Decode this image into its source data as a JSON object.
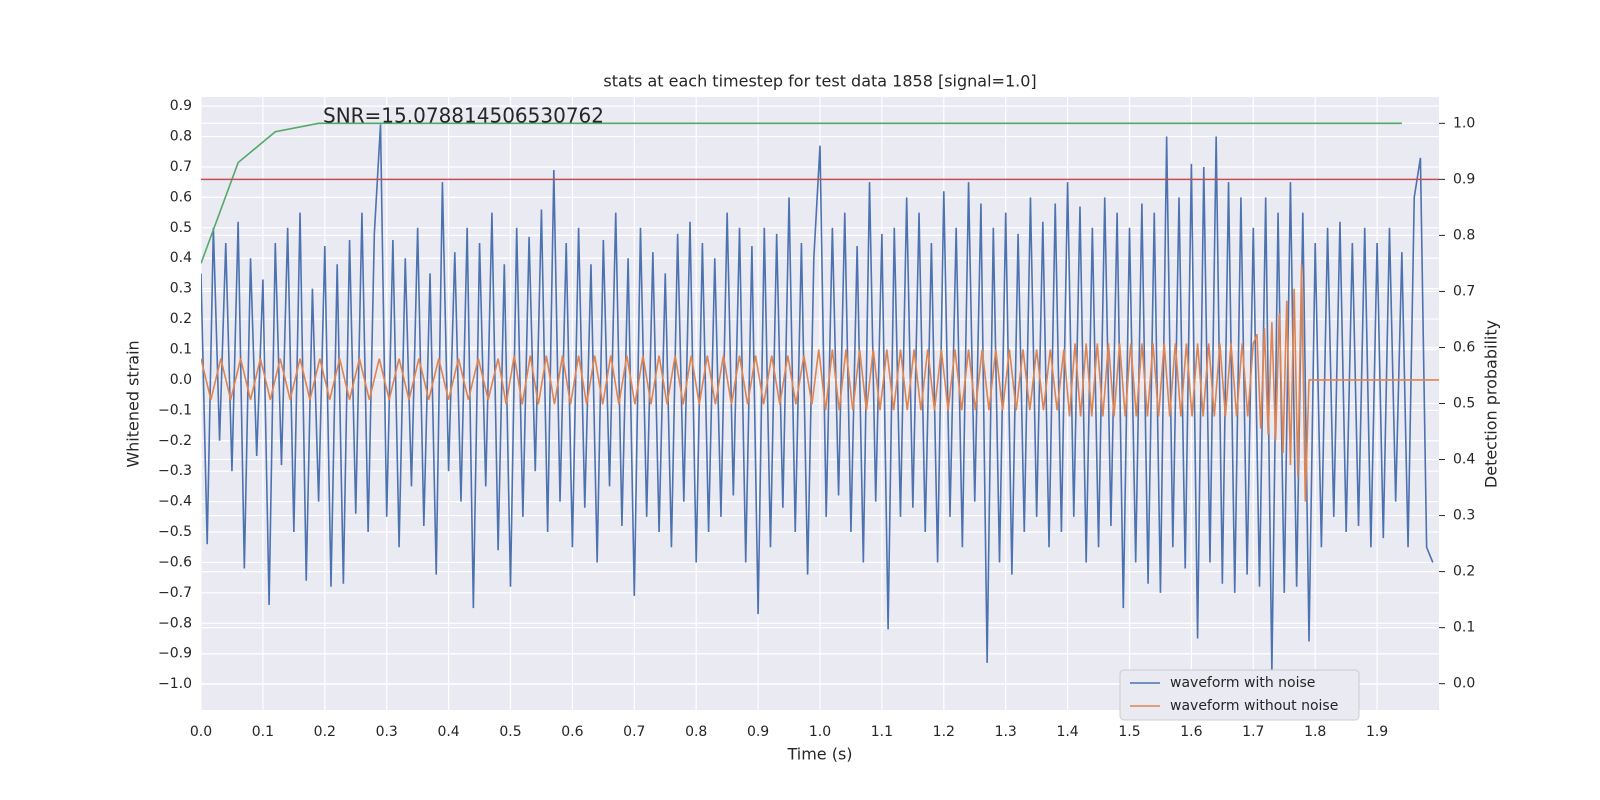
{
  "chart_data": {
    "type": "line",
    "title": "stats at each timestep for test data 1858 [signal=1.0]",
    "annotation": "SNR=15.078814506530762",
    "x_label": "Time (s)",
    "y_label": "Whitened strain",
    "y2_label": "Detection probability",
    "xlim": [
      0,
      2.0
    ],
    "ylim": [
      -1.085,
      0.93
    ],
    "y2lim": [
      -0.047,
      1.047
    ],
    "grid": true,
    "legend": "lower right",
    "xticks": [
      {
        "value": 0,
        "label": "0.0"
      },
      0.1,
      0.2,
      0.3,
      0.4,
      0.5,
      0.6,
      0.7,
      0.8,
      0.9,
      {
        "value": 1,
        "label": "1.0"
      },
      1.1,
      1.2,
      1.3,
      1.4,
      1.5,
      1.6,
      1.7,
      1.8,
      1.9
    ],
    "yticks": [
      {
        "value": -1,
        "label": "−1.0"
      },
      {
        "value": -0.9,
        "label": "−0.9"
      },
      {
        "value": -0.8,
        "label": "−0.8"
      },
      {
        "value": -0.7,
        "label": "−0.7"
      },
      {
        "value": -0.6,
        "label": "−0.6"
      },
      {
        "value": -0.5,
        "label": "−0.5"
      },
      {
        "value": -0.4,
        "label": "−0.4"
      },
      {
        "value": -0.3,
        "label": "−0.3"
      },
      {
        "value": -0.2,
        "label": "−0.2"
      },
      {
        "value": -0.1,
        "label": "−0.1"
      },
      {
        "value": 0,
        "label": "0.0"
      },
      0.1,
      0.2,
      0.3,
      0.4,
      0.5,
      0.6,
      0.7,
      0.8,
      0.9
    ],
    "y2ticks": [
      {
        "value": 0,
        "label": "0.0"
      },
      0.1,
      0.2,
      0.3,
      0.4,
      0.5,
      0.6,
      0.7,
      0.8,
      0.9,
      {
        "value": 1,
        "label": "1.0"
      }
    ],
    "series": [
      {
        "name": "waveform with noise",
        "color": "#4c72b0",
        "x": [
          0,
          0.01,
          0.02,
          0.03,
          0.04,
          0.05,
          0.06,
          0.07,
          0.08,
          0.09,
          0.1,
          0.11,
          0.12,
          0.13,
          0.14,
          0.15,
          0.16,
          0.17,
          0.18,
          0.19,
          0.2,
          0.21,
          0.22,
          0.23,
          0.24,
          0.25,
          0.26,
          0.27,
          0.28,
          0.29,
          0.3,
          0.31,
          0.32,
          0.33,
          0.34,
          0.35,
          0.36,
          0.37,
          0.38,
          0.39,
          0.4,
          0.41,
          0.42,
          0.43,
          0.44,
          0.45,
          0.46,
          0.47,
          0.48,
          0.49,
          0.5,
          0.51,
          0.52,
          0.53,
          0.54,
          0.55,
          0.56,
          0.57,
          0.58,
          0.59,
          0.6,
          0.61,
          0.62,
          0.63,
          0.64,
          0.65,
          0.66,
          0.67,
          0.68,
          0.69,
          0.7,
          0.71,
          0.72,
          0.73,
          0.74,
          0.75,
          0.76,
          0.77,
          0.78,
          0.79,
          0.8,
          0.81,
          0.82,
          0.83,
          0.84,
          0.85,
          0.86,
          0.87,
          0.88,
          0.89,
          0.9,
          0.91,
          0.92,
          0.93,
          0.94,
          0.95,
          0.96,
          0.97,
          0.98,
          0.99,
          1,
          1.01,
          1.02,
          1.03,
          1.04,
          1.05,
          1.06,
          1.07,
          1.08,
          1.09,
          1.1,
          1.11,
          1.12,
          1.13,
          1.14,
          1.15,
          1.16,
          1.17,
          1.18,
          1.19,
          1.2,
          1.21,
          1.22,
          1.23,
          1.24,
          1.25,
          1.26,
          1.27,
          1.28,
          1.29,
          1.3,
          1.31,
          1.32,
          1.33,
          1.34,
          1.35,
          1.36,
          1.37,
          1.38,
          1.39,
          1.4,
          1.41,
          1.42,
          1.43,
          1.44,
          1.45,
          1.46,
          1.47,
          1.48,
          1.49,
          1.5,
          1.51,
          1.52,
          1.53,
          1.54,
          1.55,
          1.56,
          1.57,
          1.58,
          1.59,
          1.6,
          1.61,
          1.62,
          1.63,
          1.64,
          1.65,
          1.66,
          1.67,
          1.68,
          1.69,
          1.7,
          1.71,
          1.72,
          1.73,
          1.74,
          1.75,
          1.76,
          1.77,
          1.78,
          1.79,
          1.8,
          1.81,
          1.82,
          1.83,
          1.84,
          1.85,
          1.86,
          1.87,
          1.88,
          1.89,
          1.9,
          1.91,
          1.92,
          1.93,
          1.94,
          1.95,
          1.96,
          1.97,
          1.98,
          1.99
        ],
        "values": [
          0.35,
          -0.54,
          0.5,
          -0.2,
          0.45,
          -0.3,
          0.52,
          -0.62,
          0.4,
          -0.25,
          0.33,
          -0.74,
          0.45,
          -0.28,
          0.5,
          -0.5,
          0.55,
          -0.66,
          0.3,
          -0.4,
          0.44,
          -0.68,
          0.38,
          -0.67,
          0.46,
          -0.44,
          0.55,
          -0.5,
          0.48,
          0.84,
          -0.45,
          0.46,
          -0.55,
          0.4,
          -0.35,
          0.5,
          -0.48,
          0.35,
          -0.64,
          0.65,
          -0.3,
          0.42,
          -0.4,
          0.5,
          -0.75,
          0.45,
          -0.35,
          0.55,
          -0.56,
          0.38,
          -0.68,
          0.5,
          -0.45,
          0.47,
          -0.3,
          0.56,
          -0.5,
          0.69,
          -0.4,
          0.45,
          -0.55,
          0.5,
          -0.42,
          0.38,
          -0.6,
          0.46,
          -0.35,
          0.55,
          -0.48,
          0.4,
          -0.71,
          0.5,
          -0.45,
          0.42,
          -0.5,
          0.35,
          -0.55,
          0.48,
          -0.4,
          0.52,
          -0.6,
          0.45,
          -0.5,
          0.4,
          -0.45,
          0.55,
          -0.38,
          0.5,
          -0.6,
          0.44,
          -0.77,
          0.5,
          -0.55,
          0.48,
          -0.42,
          0.6,
          -0.5,
          0.45,
          -0.64,
          0.4,
          0.77,
          -0.45,
          0.5,
          -0.38,
          0.55,
          -0.5,
          0.44,
          -0.6,
          0.65,
          -0.4,
          0.48,
          -0.82,
          0.5,
          -0.45,
          0.6,
          -0.42,
          0.55,
          -0.5,
          0.45,
          -0.6,
          0.62,
          -0.45,
          0.5,
          -0.55,
          0.65,
          -0.4,
          0.58,
          -0.93,
          0.5,
          -0.6,
          0.55,
          -0.64,
          0.48,
          -0.5,
          0.6,
          -0.45,
          0.52,
          -0.55,
          0.58,
          -0.5,
          0.65,
          -0.45,
          0.57,
          -0.6,
          0.5,
          -0.55,
          0.6,
          -0.48,
          0.55,
          -0.75,
          0.5,
          -0.6,
          0.58,
          -0.67,
          0.55,
          -0.7,
          0.8,
          -0.55,
          0.6,
          -0.62,
          0.71,
          -0.85,
          0.7,
          -0.6,
          0.8,
          -0.67,
          0.65,
          -0.7,
          0.6,
          -0.64,
          0.5,
          -0.68,
          0.6,
          -0.96,
          0.55,
          -0.7,
          0.65,
          -0.68,
          0.55,
          -0.86,
          0.45,
          -0.55,
          0.5,
          -0.45,
          0.52,
          -0.5,
          0.45,
          -0.48,
          0.5,
          -0.55,
          0.45,
          -0.52,
          0.5,
          -0.4,
          0.42,
          -0.55,
          0.6,
          0.73,
          -0.55,
          -0.6
        ]
      },
      {
        "name": "waveform without noise",
        "color": "#dd8452",
        "x": [
          0,
          0.016,
          0.032,
          0.048,
          0.064,
          0.08,
          0.096,
          0.112,
          0.128,
          0.144,
          0.16,
          0.176,
          0.192,
          0.208,
          0.224,
          0.24,
          0.256,
          0.272,
          0.288,
          0.304,
          0.32,
          0.336,
          0.352,
          0.368,
          0.384,
          0.4,
          0.416,
          0.432,
          0.448,
          0.464,
          0.48,
          0.493,
          0.506,
          0.519,
          0.532,
          0.545,
          0.558,
          0.571,
          0.584,
          0.597,
          0.61,
          0.623,
          0.636,
          0.649,
          0.662,
          0.675,
          0.688,
          0.701,
          0.714,
          0.727,
          0.74,
          0.753,
          0.766,
          0.779,
          0.792,
          0.805,
          0.818,
          0.831,
          0.844,
          0.857,
          0.87,
          0.883,
          0.896,
          0.909,
          0.922,
          0.935,
          0.948,
          0.961,
          0.974,
          0.987,
          0.998,
          1.009,
          1.02,
          1.031,
          1.042,
          1.053,
          1.064,
          1.075,
          1.086,
          1.097,
          1.108,
          1.119,
          1.13,
          1.141,
          1.152,
          1.163,
          1.174,
          1.185,
          1.196,
          1.207,
          1.218,
          1.229,
          1.24,
          1.251,
          1.262,
          1.273,
          1.284,
          1.295,
          1.306,
          1.317,
          1.328,
          1.339,
          1.35,
          1.361,
          1.372,
          1.383,
          1.394,
          1.403,
          1.412,
          1.421,
          1.43,
          1.439,
          1.448,
          1.457,
          1.466,
          1.475,
          1.484,
          1.493,
          1.502,
          1.511,
          1.52,
          1.529,
          1.538,
          1.547,
          1.556,
          1.565,
          1.574,
          1.583,
          1.592,
          1.601,
          1.61,
          1.619,
          1.628,
          1.637,
          1.646,
          1.655,
          1.664,
          1.673,
          1.682,
          1.691,
          1.7,
          1.706,
          1.712,
          1.718,
          1.724,
          1.73,
          1.736,
          1.742,
          1.748,
          1.754,
          1.76,
          1.766,
          1.772,
          1.778,
          1.784,
          1.79,
          2.0
        ],
        "values": [
          0.07,
          -0.065,
          0.07,
          -0.065,
          0.07,
          -0.065,
          0.07,
          -0.065,
          0.07,
          -0.065,
          0.07,
          -0.065,
          0.07,
          -0.065,
          0.07,
          -0.065,
          0.07,
          -0.065,
          0.07,
          -0.065,
          0.07,
          -0.065,
          0.07,
          -0.065,
          0.07,
          -0.065,
          0.07,
          -0.065,
          0.07,
          -0.065,
          0.07,
          -0.08,
          0.08,
          -0.08,
          0.08,
          -0.08,
          0.08,
          -0.08,
          0.08,
          -0.08,
          0.08,
          -0.08,
          0.08,
          -0.08,
          0.08,
          -0.08,
          0.08,
          -0.08,
          0.08,
          -0.08,
          0.08,
          -0.08,
          0.08,
          -0.08,
          0.08,
          -0.08,
          0.08,
          -0.08,
          0.08,
          -0.08,
          0.08,
          -0.08,
          0.08,
          -0.08,
          0.08,
          -0.08,
          0.08,
          -0.08,
          0.08,
          -0.08,
          0.1,
          -0.1,
          0.1,
          -0.1,
          0.1,
          -0.1,
          0.1,
          -0.1,
          0.1,
          -0.1,
          0.1,
          -0.1,
          0.1,
          -0.1,
          0.1,
          -0.1,
          0.1,
          -0.1,
          0.1,
          -0.1,
          0.1,
          -0.1,
          0.1,
          -0.1,
          0.1,
          -0.1,
          0.1,
          -0.1,
          0.1,
          -0.1,
          0.1,
          -0.1,
          0.1,
          -0.1,
          0.1,
          -0.1,
          0.1,
          -0.12,
          0.12,
          -0.12,
          0.12,
          -0.12,
          0.12,
          -0.12,
          0.12,
          -0.12,
          0.12,
          -0.12,
          0.12,
          -0.12,
          0.12,
          -0.12,
          0.12,
          -0.12,
          0.12,
          -0.12,
          0.12,
          -0.12,
          0.12,
          -0.12,
          0.12,
          -0.12,
          0.12,
          -0.12,
          0.12,
          -0.12,
          0.12,
          -0.12,
          0.12,
          -0.12,
          0.12,
          0.15,
          -0.16,
          0.17,
          -0.18,
          0.19,
          -0.2,
          0.22,
          -0.24,
          0.26,
          -0.28,
          0.3,
          -0.32,
          0.38,
          -0.4,
          0,
          0
        ]
      }
    ],
    "probability": {
      "color": "#55a868",
      "x": [
        0,
        0.06,
        0.12,
        0.19,
        1.94
      ],
      "values": [
        0.75,
        0.93,
        0.985,
        1.0,
        1.0
      ]
    },
    "threshold": {
      "color": "#c44e52",
      "value": 0.9
    }
  }
}
